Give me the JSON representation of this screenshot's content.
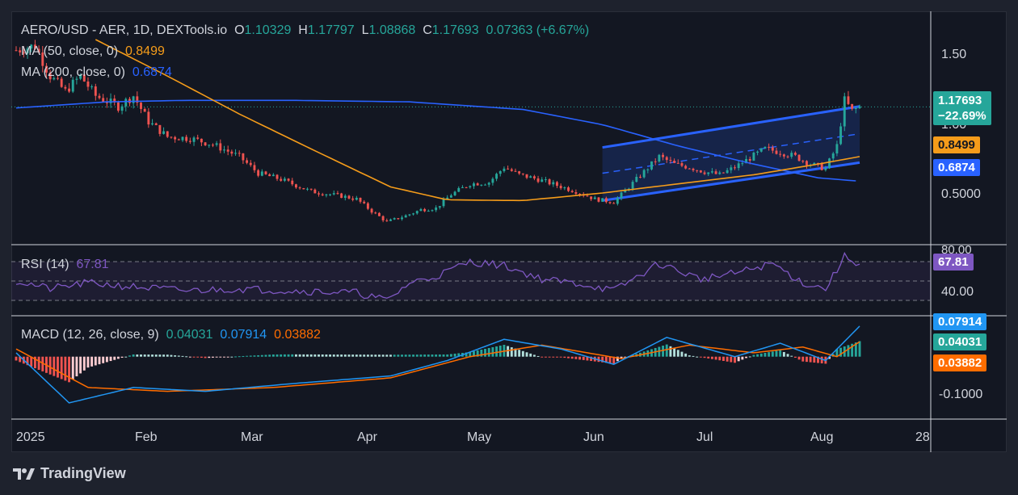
{
  "header": {
    "symbol": "AERO/USD - AER, 1D, DEXTools.io",
    "o_label": "O",
    "o_value": "1.10329",
    "h_label": "H",
    "h_value": "1.17797",
    "l_label": "L",
    "l_value": "1.08868",
    "c_label": "C",
    "c_value": "1.17693",
    "change": "0.07363 (+6.67%)"
  },
  "ma50": {
    "label": "MA (50, close, 0)",
    "value": "0.8499",
    "color": "#f59c1a"
  },
  "ma200": {
    "label": "MA (200, close, 0)",
    "value": "0.6874",
    "color": "#2962ff"
  },
  "rsi": {
    "label": "RSI (14)",
    "value": "67.81",
    "color": "#7e57c2"
  },
  "macd": {
    "label": "MACD (12, 26, close, 9)",
    "hist_value": "0.04031",
    "macd_value": "0.07914",
    "signal_value": "0.03882"
  },
  "price_axis": {
    "ticks": [
      "1.50",
      "1.00",
      "0.5000"
    ],
    "last_price": "1.17693",
    "last_change": "−22.69%"
  },
  "rsi_axis": {
    "ticks": [
      "80.00",
      "40.00"
    ]
  },
  "macd_axis": {
    "ticks": [
      "-0.1000"
    ]
  },
  "time_axis": [
    "2025",
    "Feb",
    "Mar",
    "Apr",
    "May",
    "Jun",
    "Jul",
    "Aug",
    "28"
  ],
  "colors": {
    "up": "#26a69a",
    "down": "#ef5350",
    "channel": "#2962ff",
    "ma50": "#f59c1a",
    "ma200": "#2962ff",
    "rsi": "#7e57c2",
    "macd": "#2196f3",
    "signal": "#ff6d00"
  },
  "footer": {
    "brand": "TradingView"
  },
  "chart_data": {
    "type": "candlestick",
    "timeframe": "1D",
    "x_range": [
      "2025-01-01",
      "2025-08-12"
    ],
    "ylim": [
      0.3,
      1.75
    ],
    "price_path": [
      [
        "2025-01-01",
        1.55
      ],
      [
        "2025-01-06",
        1.58
      ],
      [
        "2025-01-10",
        1.38
      ],
      [
        "2025-01-14",
        1.28
      ],
      [
        "2025-01-18",
        1.38
      ],
      [
        "2025-01-22",
        1.25
      ],
      [
        "2025-01-28",
        1.18
      ],
      [
        "2025-02-01",
        1.25
      ],
      [
        "2025-02-05",
        1.08
      ],
      [
        "2025-02-10",
        0.98
      ],
      [
        "2025-02-16",
        0.97
      ],
      [
        "2025-02-22",
        0.93
      ],
      [
        "2025-03-01",
        0.85
      ],
      [
        "2025-03-06",
        0.74
      ],
      [
        "2025-03-12",
        0.7
      ],
      [
        "2025-03-20",
        0.62
      ],
      [
        "2025-03-28",
        0.59
      ],
      [
        "2025-04-01",
        0.57
      ],
      [
        "2025-04-05",
        0.49
      ],
      [
        "2025-04-09",
        0.42
      ],
      [
        "2025-04-14",
        0.46
      ],
      [
        "2025-04-18",
        0.5
      ],
      [
        "2025-04-22",
        0.51
      ],
      [
        "2025-04-26",
        0.6
      ],
      [
        "2025-05-01",
        0.67
      ],
      [
        "2025-05-06",
        0.68
      ],
      [
        "2025-05-10",
        0.78
      ],
      [
        "2025-05-14",
        0.73
      ],
      [
        "2025-05-19",
        0.7
      ],
      [
        "2025-05-24",
        0.66
      ],
      [
        "2025-05-29",
        0.62
      ],
      [
        "2025-06-03",
        0.57
      ],
      [
        "2025-06-08",
        0.55
      ],
      [
        "2025-06-12",
        0.65
      ],
      [
        "2025-06-16",
        0.75
      ],
      [
        "2025-06-20",
        0.85
      ],
      [
        "2025-06-24",
        0.8
      ],
      [
        "2025-06-28",
        0.78
      ],
      [
        "2025-07-02",
        0.75
      ],
      [
        "2025-07-06",
        0.73
      ],
      [
        "2025-07-10",
        0.78
      ],
      [
        "2025-07-14",
        0.84
      ],
      [
        "2025-07-18",
        0.9
      ],
      [
        "2025-07-22",
        0.88
      ],
      [
        "2025-07-26",
        0.85
      ],
      [
        "2025-07-30",
        0.8
      ],
      [
        "2025-08-03",
        0.77
      ],
      [
        "2025-08-06",
        0.92
      ],
      [
        "2025-08-08",
        1.22
      ],
      [
        "2025-08-10",
        1.15
      ],
      [
        "2025-08-12",
        1.17693
      ]
    ],
    "ma50_path": [
      [
        "2025-01-22",
        1.62
      ],
      [
        "2025-02-10",
        1.38
      ],
      [
        "2025-03-01",
        1.13
      ],
      [
        "2025-03-20",
        0.9
      ],
      [
        "2025-04-10",
        0.65
      ],
      [
        "2025-04-25",
        0.565
      ],
      [
        "2025-05-15",
        0.56
      ],
      [
        "2025-06-05",
        0.61
      ],
      [
        "2025-06-25",
        0.67
      ],
      [
        "2025-07-15",
        0.73
      ],
      [
        "2025-08-01",
        0.8
      ],
      [
        "2025-08-12",
        0.8499
      ]
    ],
    "ma200_path": [
      [
        "2025-01-01",
        1.17
      ],
      [
        "2025-01-25",
        1.21
      ],
      [
        "2025-02-15",
        1.22
      ],
      [
        "2025-03-15",
        1.22
      ],
      [
        "2025-04-15",
        1.21
      ],
      [
        "2025-05-15",
        1.16
      ],
      [
        "2025-06-05",
        1.06
      ],
      [
        "2025-06-25",
        0.92
      ],
      [
        "2025-07-15",
        0.8
      ],
      [
        "2025-08-01",
        0.71
      ],
      [
        "2025-08-12",
        0.6874
      ]
    ],
    "channel": {
      "upper": [
        [
          "2025-06-05",
          0.91
        ],
        [
          "2025-08-12",
          1.18
        ]
      ],
      "mid": [
        [
          "2025-06-05",
          0.74
        ],
        [
          "2025-08-12",
          1.0
        ]
      ],
      "lower": [
        [
          "2025-06-05",
          0.56
        ],
        [
          "2025-08-12",
          0.81
        ]
      ]
    },
    "rsi_levels": [
      70,
      50,
      30
    ],
    "rsi_path": [
      [
        "2025-01-01",
        50
      ],
      [
        "2025-01-10",
        42
      ],
      [
        "2025-01-20",
        48
      ],
      [
        "2025-02-01",
        44
      ],
      [
        "2025-02-15",
        40
      ],
      [
        "2025-03-01",
        42
      ],
      [
        "2025-03-15",
        40
      ],
      [
        "2025-04-01",
        38
      ],
      [
        "2025-04-09",
        30
      ],
      [
        "2025-04-15",
        48
      ],
      [
        "2025-04-22",
        55
      ],
      [
        "2025-05-01",
        70
      ],
      [
        "2025-05-10",
        66
      ],
      [
        "2025-05-20",
        52
      ],
      [
        "2025-06-01",
        46
      ],
      [
        "2025-06-08",
        40
      ],
      [
        "2025-06-20",
        68
      ],
      [
        "2025-07-01",
        52
      ],
      [
        "2025-07-10",
        58
      ],
      [
        "2025-07-20",
        68
      ],
      [
        "2025-07-28",
        48
      ],
      [
        "2025-08-03",
        42
      ],
      [
        "2025-08-08",
        75
      ],
      [
        "2025-08-12",
        67.81
      ]
    ],
    "macd_path": [
      [
        "2025-01-01",
        0.01
      ],
      [
        "2025-01-15",
        -0.12
      ],
      [
        "2025-02-01",
        -0.08
      ],
      [
        "2025-02-20",
        -0.09
      ],
      [
        "2025-03-15",
        -0.07
      ],
      [
        "2025-04-10",
        -0.05
      ],
      [
        "2025-04-25",
        -0.01
      ],
      [
        "2025-05-10",
        0.045
      ],
      [
        "2025-05-25",
        0.02
      ],
      [
        "2025-06-08",
        -0.02
      ],
      [
        "2025-06-22",
        0.05
      ],
      [
        "2025-07-10",
        0.0
      ],
      [
        "2025-07-22",
        0.035
      ],
      [
        "2025-08-03",
        -0.01
      ],
      [
        "2025-08-12",
        0.07914
      ]
    ],
    "signal_path": [
      [
        "2025-01-01",
        0.02
      ],
      [
        "2025-01-20",
        -0.08
      ],
      [
        "2025-02-10",
        -0.09
      ],
      [
        "2025-03-10",
        -0.08
      ],
      [
        "2025-04-10",
        -0.055
      ],
      [
        "2025-05-01",
        0.0
      ],
      [
        "2025-05-20",
        0.03
      ],
      [
        "2025-06-10",
        -0.005
      ],
      [
        "2025-06-28",
        0.03
      ],
      [
        "2025-07-15",
        0.01
      ],
      [
        "2025-07-28",
        0.025
      ],
      [
        "2025-08-06",
        0.0
      ],
      [
        "2025-08-12",
        0.03882
      ]
    ]
  }
}
